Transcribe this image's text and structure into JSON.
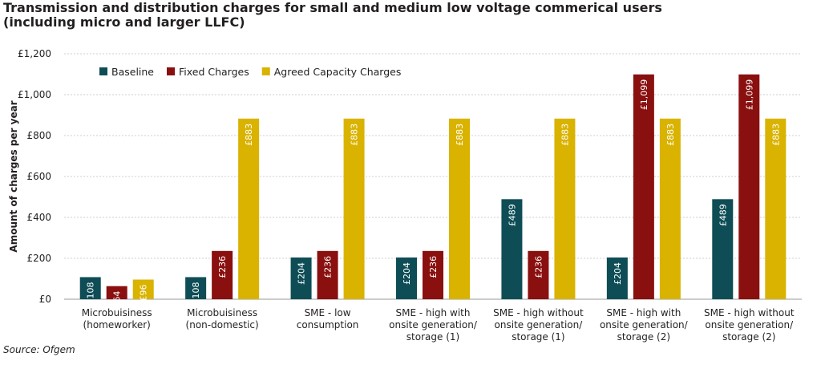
{
  "title_lines": [
    "Transmission and distribution charges for small and medium low voltage commerical users",
    "(including micro and larger LLFC)"
  ],
  "source": "Source: Ofgem",
  "chart_data": {
    "type": "bar",
    "ylabel": "Amount of charges per year",
    "ylim": [
      0,
      1200
    ],
    "yticks": [
      0,
      200,
      400,
      600,
      800,
      1000,
      1200
    ],
    "ytick_labels": [
      "£0",
      "£200",
      "£400",
      "£600",
      "£800",
      "£1,000",
      "£1,200"
    ],
    "grid": true,
    "legend_position": "top-left",
    "categories": [
      [
        "Microbuisiness",
        "(homeworker)"
      ],
      [
        "Microbuisiness",
        "(non-domestic)"
      ],
      [
        "SME - low",
        "consumption"
      ],
      [
        "SME - high with",
        "onsite generation/",
        "storage (1)"
      ],
      [
        "SME - high without",
        "onsite generation/",
        "storage (1)"
      ],
      [
        "SME - high with",
        "onsite generation/",
        "storage (2)"
      ],
      [
        "SME - high without",
        "onsite generation/",
        "storage (2)"
      ]
    ],
    "series": [
      {
        "name": "Baseline",
        "color": "#0e4d56",
        "values": [
          108,
          108,
          204,
          204,
          489,
          204,
          489
        ],
        "labels": [
          "£108",
          "£108",
          "£204",
          "£204",
          "£489",
          "£204",
          "£489"
        ]
      },
      {
        "name": "Fixed Charges",
        "color": "#8a0f0f",
        "values": [
          64,
          236,
          236,
          236,
          236,
          1099,
          1099
        ],
        "labels": [
          "£64",
          "£236",
          "£236",
          "£236",
          "£236",
          "£1,099",
          "£1,099"
        ]
      },
      {
        "name": "Agreed Capacity Charges",
        "color": "#d9b300",
        "values": [
          96,
          883,
          883,
          883,
          883,
          883,
          883
        ],
        "labels": [
          "£96",
          "£883",
          "£883",
          "£883",
          "£883",
          "£883",
          "£883"
        ]
      }
    ]
  }
}
